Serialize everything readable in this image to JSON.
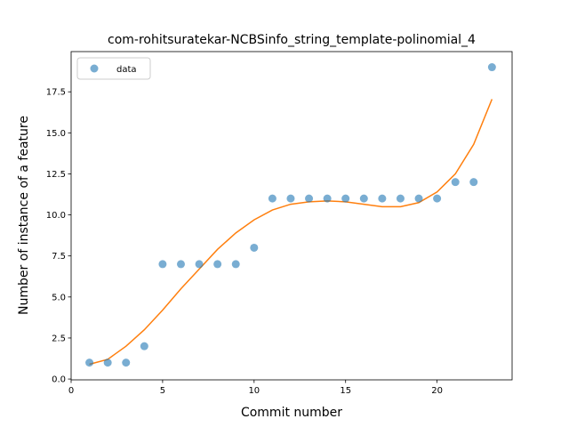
{
  "chart_data": {
    "type": "scatter",
    "title": "com-rohitsuratekar-NCBSinfo_string_template-polinomial_4",
    "xlabel": "Commit number",
    "ylabel": "Number of instance of a feature",
    "xlim": [
      0,
      24.1
    ],
    "ylim": [
      -0.05,
      19.95
    ],
    "x_ticks": [
      0,
      5,
      10,
      15,
      20
    ],
    "x_tick_labels": [
      "0",
      "5",
      "10",
      "15",
      "20"
    ],
    "y_ticks": [
      0,
      2.5,
      5,
      7.5,
      10,
      12.5,
      15,
      17.5
    ],
    "y_tick_labels": [
      "0.0",
      "2.5",
      "5.0",
      "7.5",
      "10.0",
      "12.5",
      "15.0",
      "17.5"
    ],
    "grid": false,
    "legend": {
      "placement": "top-left",
      "entries": [
        "data"
      ]
    },
    "series": [
      {
        "name": "data",
        "kind": "scatter",
        "color": "#1f77b4",
        "x": [
          1,
          2,
          3,
          4,
          5,
          6,
          7,
          8,
          9,
          10,
          11,
          12,
          13,
          14,
          15,
          16,
          17,
          18,
          19,
          20,
          21,
          22,
          23
        ],
        "y": [
          1,
          1,
          1,
          2,
          7,
          7,
          7,
          7,
          7,
          8,
          11,
          11,
          11,
          11,
          11,
          11,
          11,
          11,
          11,
          11,
          12,
          12,
          19
        ]
      },
      {
        "kind": "line",
        "color": "#ff7f0e",
        "x": [
          1,
          2,
          3,
          4,
          5,
          6,
          7,
          8,
          9,
          10,
          11,
          12,
          13,
          14,
          15,
          16,
          17,
          18,
          19,
          20,
          21,
          22,
          23
        ],
        "y": [
          0.9,
          1.2,
          2.0,
          3.0,
          4.2,
          5.5,
          6.7,
          7.9,
          8.9,
          9.7,
          10.3,
          10.65,
          10.8,
          10.85,
          10.8,
          10.65,
          10.5,
          10.5,
          10.75,
          11.4,
          12.5,
          14.3,
          17.05
        ]
      }
    ]
  }
}
